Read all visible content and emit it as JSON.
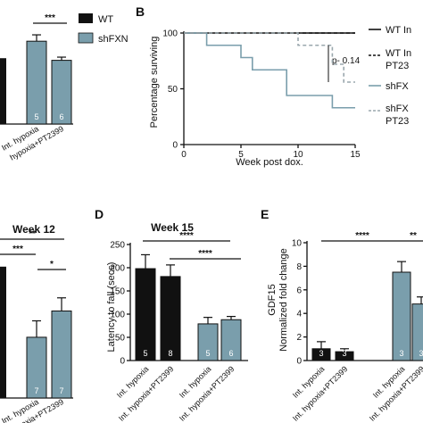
{
  "colors": {
    "wt": "#111111",
    "shfxn": "#7a9eac",
    "shfxn_dash": "#9aa7ad"
  },
  "legend_top": {
    "items": [
      {
        "label": "WT",
        "color": "#111111"
      },
      {
        "label": "shFXN",
        "color": "#7a9eac"
      }
    ]
  },
  "panels": {
    "b_letter": "B",
    "d_letter": "D",
    "e_letter": "E"
  },
  "chart_data": [
    {
      "id": "A_partial",
      "type": "bar",
      "categories": [
        "Int. hypoxia",
        "Int. hypoxia+PT2399",
        "Int. hypoxia",
        "Int. hypoxia+PT2399"
      ],
      "category_labels_visible": [
        "",
        "",
        "Int. hypoxia",
        "hypoxia+PT2399"
      ],
      "series": [
        {
          "name": "WT",
          "values": [
            null,
            0.62,
            null,
            null
          ]
        },
        {
          "name": "shFXN",
          "values": [
            null,
            null,
            0.78,
            0.6
          ]
        }
      ],
      "errors": [
        0,
        0,
        0.06,
        0.03
      ],
      "n_labels": [
        "",
        "",
        "5",
        "6"
      ],
      "cropped_tick_labels": [
        "9"
      ],
      "ylim": [
        0,
        1
      ],
      "significance": [
        {
          "label": "***"
        }
      ]
    },
    {
      "id": "B",
      "type": "line",
      "xlabel": "Week post dox.",
      "ylabel": "Percentage surviving",
      "xlim": [
        0,
        15
      ],
      "ylim": [
        0,
        100
      ],
      "xticks": [
        0,
        5,
        10,
        15
      ],
      "yticks": [
        0,
        50,
        100
      ],
      "annotation": "p- 0.14",
      "series": [
        {
          "name": "WT Int. hypoxia",
          "legend_label": "WT In",
          "style": "solid",
          "color": "#111111",
          "x": [
            0,
            15
          ],
          "y": [
            100,
            100
          ]
        },
        {
          "name": "WT Int. hypoxia+PT2399",
          "legend_label": "WT In",
          "legend_label2": "PT23",
          "style": "dashed",
          "color": "#111111",
          "x": [
            0,
            15
          ],
          "y": [
            100,
            100
          ]
        },
        {
          "name": "shFXN Int. hypoxia",
          "legend_label": "shFX",
          "style": "solid",
          "color": "#7a9eac",
          "x": [
            0,
            2,
            2,
            5,
            5,
            6,
            6,
            9,
            9,
            13,
            13,
            15
          ],
          "y": [
            100,
            100,
            89,
            89,
            78,
            78,
            67,
            67,
            44,
            44,
            33,
            33
          ]
        },
        {
          "name": "shFXN Int. hypoxia+PT2399",
          "legend_label": "shFX",
          "legend_label2": "PT23",
          "style": "dashed",
          "color": "#9aa7ad",
          "x": [
            0,
            10,
            10,
            13,
            13,
            14,
            14,
            15
          ],
          "y": [
            100,
            100,
            89,
            89,
            72,
            72,
            56,
            56
          ]
        }
      ]
    },
    {
      "id": "C_partial",
      "type": "bar",
      "title": "Week 12",
      "series": [
        {
          "name": "WT",
          "values": [
            null,
            0.8,
            null,
            null
          ]
        },
        {
          "name": "shFXN",
          "values": [
            null,
            null,
            0.37,
            0.53
          ]
        }
      ],
      "categories": [
        "Int. hypoxia",
        "Int. hypoxia+PT2399",
        "Int. hypoxia",
        "Int. hypoxia+PT2399"
      ],
      "category_labels_visible": [
        "",
        "",
        "Int. hypoxia",
        "hypoxia+PT2399"
      ],
      "errors": [
        0,
        0,
        0.1,
        0.08
      ],
      "n_labels": [
        "",
        "",
        "7",
        "7"
      ],
      "cropped_tick_labels": [
        "9"
      ],
      "ylim": [
        0,
        1
      ],
      "significance": [
        {
          "label": "**"
        },
        {
          "label": "***"
        },
        {
          "label": "*"
        }
      ]
    },
    {
      "id": "D",
      "type": "bar",
      "title": "Week 15",
      "ylabel": "Latency to fall (secs)",
      "ylim": [
        0,
        250
      ],
      "yticks": [
        0,
        50,
        100,
        150,
        200,
        250
      ],
      "categories": [
        "Int. hypoxia",
        "Int. hypoxia+PT2399",
        "Int. hypoxia",
        "Int. hypoxia+PT2399"
      ],
      "series": [
        {
          "name": "WT",
          "values": [
            198,
            181,
            null,
            null
          ]
        },
        {
          "name": "shFXN",
          "values": [
            null,
            null,
            79,
            88
          ]
        }
      ],
      "errors": [
        30,
        25,
        14,
        7
      ],
      "n_labels": [
        "5",
        "8",
        "5",
        "6"
      ],
      "significance": [
        {
          "label": "****"
        },
        {
          "label": "****"
        }
      ]
    },
    {
      "id": "E",
      "type": "bar",
      "ylabel": "GDF15\nNormalized fold change",
      "ylabel_line1": "GDF15",
      "ylabel_line2": "Normalized fold change",
      "ylim": [
        0,
        10
      ],
      "yticks": [
        0,
        2,
        4,
        6,
        8,
        10
      ],
      "categories": [
        "Int. hypoxia",
        "Int. hypoxia+PT2399",
        "Int. hypoxia",
        "Int. hypoxia+PT2399"
      ],
      "series": [
        {
          "name": "WT",
          "values": [
            1.0,
            0.75,
            null,
            null
          ]
        },
        {
          "name": "shFXN",
          "values": [
            null,
            null,
            7.5,
            4.8
          ]
        }
      ],
      "errors": [
        0.6,
        0.25,
        0.9,
        0.6
      ],
      "n_labels": [
        "3",
        "3",
        "3",
        "3"
      ],
      "significance": [
        {
          "label": "****"
        },
        {
          "label": "**"
        }
      ]
    }
  ]
}
